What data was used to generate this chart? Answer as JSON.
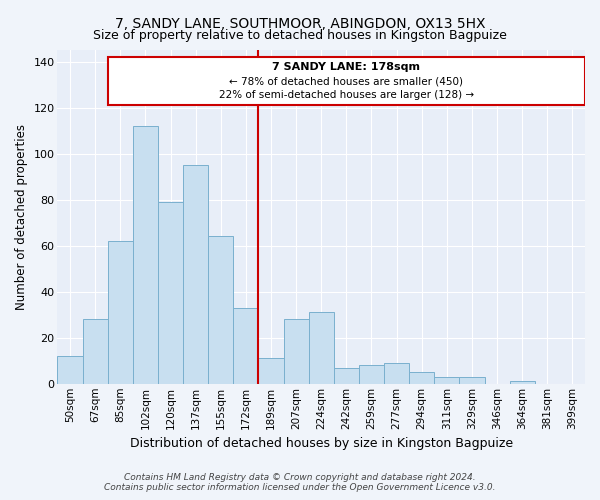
{
  "title": "7, SANDY LANE, SOUTHMOOR, ABINGDON, OX13 5HX",
  "subtitle": "Size of property relative to detached houses in Kingston Bagpuize",
  "xlabel": "Distribution of detached houses by size in Kingston Bagpuize",
  "ylabel": "Number of detached properties",
  "bar_color": "#c8dff0",
  "bar_edge_color": "#7ab0ce",
  "categories": [
    "50sqm",
    "67sqm",
    "85sqm",
    "102sqm",
    "120sqm",
    "137sqm",
    "155sqm",
    "172sqm",
    "189sqm",
    "207sqm",
    "224sqm",
    "242sqm",
    "259sqm",
    "277sqm",
    "294sqm",
    "311sqm",
    "329sqm",
    "346sqm",
    "364sqm",
    "381sqm",
    "399sqm"
  ],
  "values": [
    12,
    28,
    62,
    112,
    79,
    95,
    64,
    33,
    11,
    28,
    31,
    7,
    8,
    9,
    5,
    3,
    3,
    0,
    1,
    0,
    0
  ],
  "vline_color": "#cc0000",
  "vline_x_idx": 7,
  "annotation_title": "7 SANDY LANE: 178sqm",
  "annotation_line1": "← 78% of detached houses are smaller (450)",
  "annotation_line2": "22% of semi-detached houses are larger (128) →",
  "box_border_color": "#cc0000",
  "ylim": [
    0,
    145
  ],
  "yticks": [
    0,
    20,
    40,
    60,
    80,
    100,
    120,
    140
  ],
  "footer1": "Contains HM Land Registry data © Crown copyright and database right 2024.",
  "footer2": "Contains public sector information licensed under the Open Government Licence v3.0.",
  "background_color": "#f0f4fa",
  "plot_bg_color": "#e8eef8"
}
